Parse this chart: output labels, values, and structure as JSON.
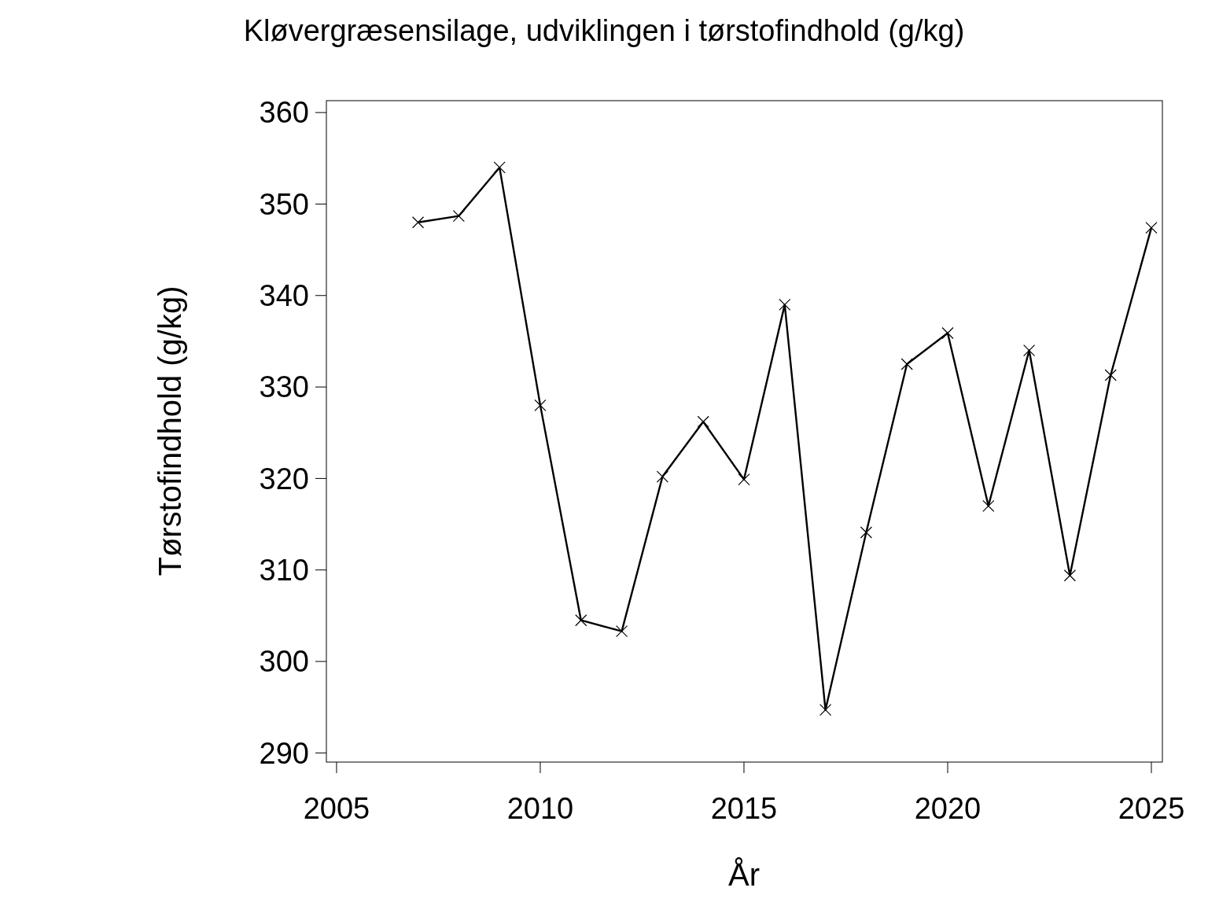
{
  "chart_data": {
    "type": "line",
    "title": "Kløvergræsensilage,  udviklingen  i  tørstofindhold  (g/kg)",
    "xlabel": "År",
    "ylabel": "Tørstofindhold  (g/kg)",
    "x": [
      2007,
      2008,
      2009,
      2010,
      2011,
      2012,
      2013,
      2014,
      2015,
      2016,
      2017,
      2018,
      2019,
      2020,
      2021,
      2022,
      2023,
      2024,
      2025
    ],
    "series": [
      {
        "color": "#000000",
        "values": [
          348,
          348.7,
          354,
          328,
          304.5,
          303.3,
          320.2,
          326.2,
          319.9,
          339,
          294.7,
          314.1,
          332.5,
          335.9,
          317,
          334,
          309.4,
          331.3,
          347.4
        ]
      }
    ],
    "xlim": [
      2004.75,
      2025.27
    ],
    "xticks": [
      2005,
      2010,
      2015,
      2020,
      2025
    ],
    "ylim": [
      289,
      361.3
    ],
    "yticks": [
      290,
      300,
      310,
      320,
      330,
      340,
      350,
      360
    ],
    "grid": false,
    "marker": "cross",
    "line_style": "solid"
  }
}
